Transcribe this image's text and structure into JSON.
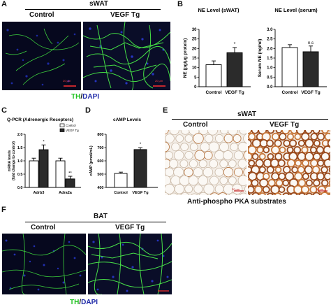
{
  "panel_letters": {
    "a": "A",
    "b": "B",
    "c": "C",
    "d": "D",
    "e": "E",
    "f": "F"
  },
  "panel_a": {
    "title": "sWAT",
    "control_label": "Control",
    "tg_label": "VEGF Tg",
    "scale_bar": "20 μm",
    "caption_th": "TH",
    "caption_slash": "/",
    "caption_dapi": "DAPI"
  },
  "panel_e": {
    "title": "sWAT",
    "control_label": "Control",
    "tg_label": "VEGF Tg",
    "caption": "Anti-phospho PKA substrates",
    "scale_bar": "20 μm"
  },
  "panel_f": {
    "title": "BAT",
    "control_label": "Control",
    "tg_label": "VEGF Tg",
    "caption_th": "TH",
    "caption_slash": "/",
    "caption_dapi": "DAPI"
  },
  "colors": {
    "control_bar": "#ffffff",
    "tg_bar": "#2b2b2b",
    "th_green": "#22c322",
    "dapi_blue": "#1f2aa8"
  },
  "chart_data": [
    {
      "id": "ne_swat",
      "type": "bar",
      "title": "NE Level (sWAT)",
      "ylabel": "NE (pg/μg protein)",
      "categories": [
        "Control",
        "VEGF Tg"
      ],
      "values": [
        11.5,
        17.8
      ],
      "errors": [
        2.0,
        2.7
      ],
      "significance": [
        "",
        "*"
      ],
      "ylim": [
        0,
        30
      ],
      "yticks": [
        0,
        5,
        10,
        15,
        20,
        25,
        30
      ]
    },
    {
      "id": "ne_serum",
      "type": "bar",
      "title": "NE Level (serum)",
      "ylabel": "Serum NE (ng/ml)",
      "categories": [
        "Control",
        "VEGF Tg"
      ],
      "values": [
        2.05,
        1.83
      ],
      "errors": [
        0.15,
        0.3
      ],
      "significance": [
        "",
        "n.s"
      ],
      "ylim": [
        0,
        3.0
      ],
      "yticks": [
        0.0,
        0.5,
        1.0,
        1.5,
        2.0,
        2.5,
        3.0
      ]
    },
    {
      "id": "qpcr",
      "type": "bar",
      "title": "Q-PCR (Adrenergic Receptors)",
      "ylabel": "mRNA levels (fold change to control)",
      "categories": [
        "Adrb3",
        "Adra2a"
      ],
      "series": [
        {
          "name": "Control",
          "values": [
            1.0,
            1.0
          ],
          "errors": [
            0.1,
            0.1
          ]
        },
        {
          "name": "VEGF Tg",
          "values": [
            1.42,
            0.32
          ],
          "errors": [
            0.18,
            0.1
          ]
        }
      ],
      "significance": [
        "*",
        "**"
      ],
      "ylim": [
        0,
        2.0
      ],
      "yticks": [
        0.0,
        0.5,
        1.0,
        1.5,
        2.0
      ],
      "legend": "top-right"
    },
    {
      "id": "camp",
      "type": "bar",
      "title": "cAMP Levels",
      "ylabel": "cAMP (pmol/mL)",
      "categories": [
        "Control",
        "VEGF Tg"
      ],
      "values": [
        505,
        685
      ],
      "errors": [
        10,
        14
      ],
      "significance": [
        "",
        "*"
      ],
      "ylim": [
        400,
        800
      ],
      "yticks": [
        400,
        500,
        600,
        700,
        800
      ]
    }
  ]
}
